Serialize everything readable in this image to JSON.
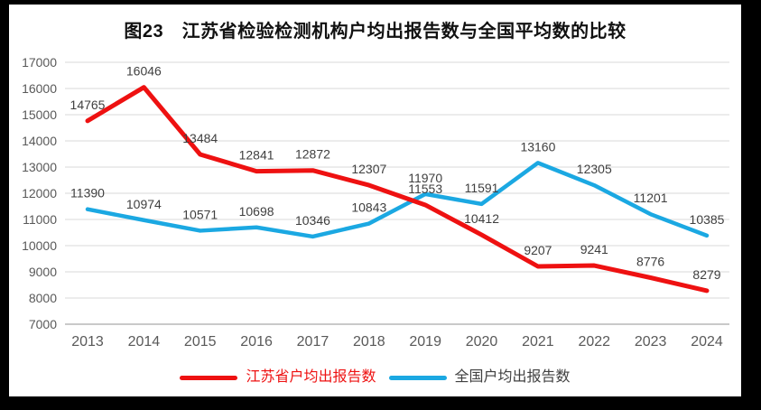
{
  "window": {
    "background_color": "#000000",
    "panel_color": "#ffffff"
  },
  "title": "图23　江苏省检验检测机构户均出报告数与全国平均数的比较",
  "chart_data": {
    "type": "line",
    "title": "图23　江苏省检验检测机构户均出报告数与全国平均数的比较",
    "categories": [
      "2013",
      "2014",
      "2015",
      "2016",
      "2017",
      "2018",
      "2019",
      "2020",
      "2021",
      "2022",
      "2023",
      "2024"
    ],
    "series": [
      {
        "name": "江苏省户均出报告数",
        "color": "#EE1111",
        "legend_text_color": "#EE1111",
        "values": [
          14765,
          16046,
          13484,
          12841,
          12872,
          12307,
          11553,
          10412,
          9207,
          9241,
          8776,
          8279
        ]
      },
      {
        "name": "全国户均出报告数",
        "color": "#1BA8E2",
        "legend_text_color": "#404040",
        "values": [
          11390,
          10974,
          10571,
          10698,
          10346,
          10843,
          11970,
          11591,
          13160,
          12305,
          11201,
          10385
        ]
      }
    ],
    "ylim": [
      7000,
      17000
    ],
    "ytick_step": 1000,
    "yticks": [
      "17000",
      "16000",
      "15000",
      "14000",
      "13000",
      "12000",
      "11000",
      "10000",
      "9000",
      "8000",
      "7000"
    ],
    "grid": true,
    "data_labels": true,
    "legend_position": "bottom",
    "colors": {
      "gridline": "#E5E5E5",
      "axis_line": "#C9C9C9",
      "tick_text": "#595959",
      "data_label_text": "#3F3F3F"
    }
  }
}
